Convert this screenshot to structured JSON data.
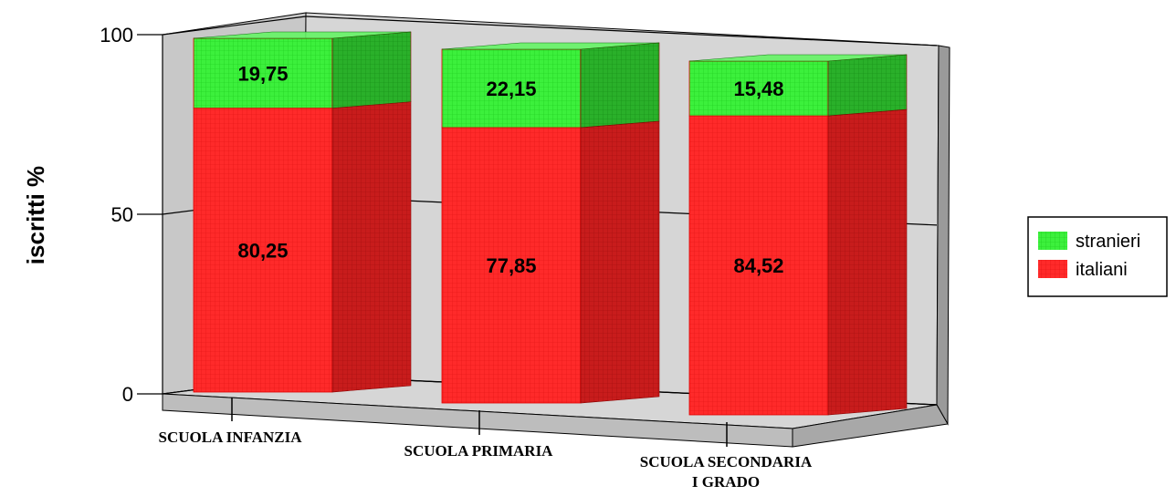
{
  "chart_data": {
    "type": "bar",
    "stacked": true,
    "three_d": true,
    "ylabel": "iscritti %",
    "xlabel": "",
    "ylim": [
      0,
      100
    ],
    "yticks": [
      0,
      50,
      100
    ],
    "categories": [
      [
        "SCUOLA INFANZIA"
      ],
      [
        "SCUOLA PRIMARIA"
      ],
      [
        "SCUOLA SECONDARIA",
        "I GRADO"
      ]
    ],
    "series": [
      {
        "name": "italiani",
        "color": "#ff2a2a",
        "values": [
          80.25,
          77.85,
          84.52
        ],
        "labels": [
          "80,25",
          "77,85",
          "84,52"
        ]
      },
      {
        "name": "stranieri",
        "color": "#33ee33",
        "values": [
          19.75,
          22.15,
          15.48
        ],
        "labels": [
          "19,75",
          "22,15",
          "15,48"
        ]
      }
    ],
    "legend": {
      "position": "right",
      "order": [
        "stranieri",
        "italiani"
      ]
    },
    "grid": true
  }
}
